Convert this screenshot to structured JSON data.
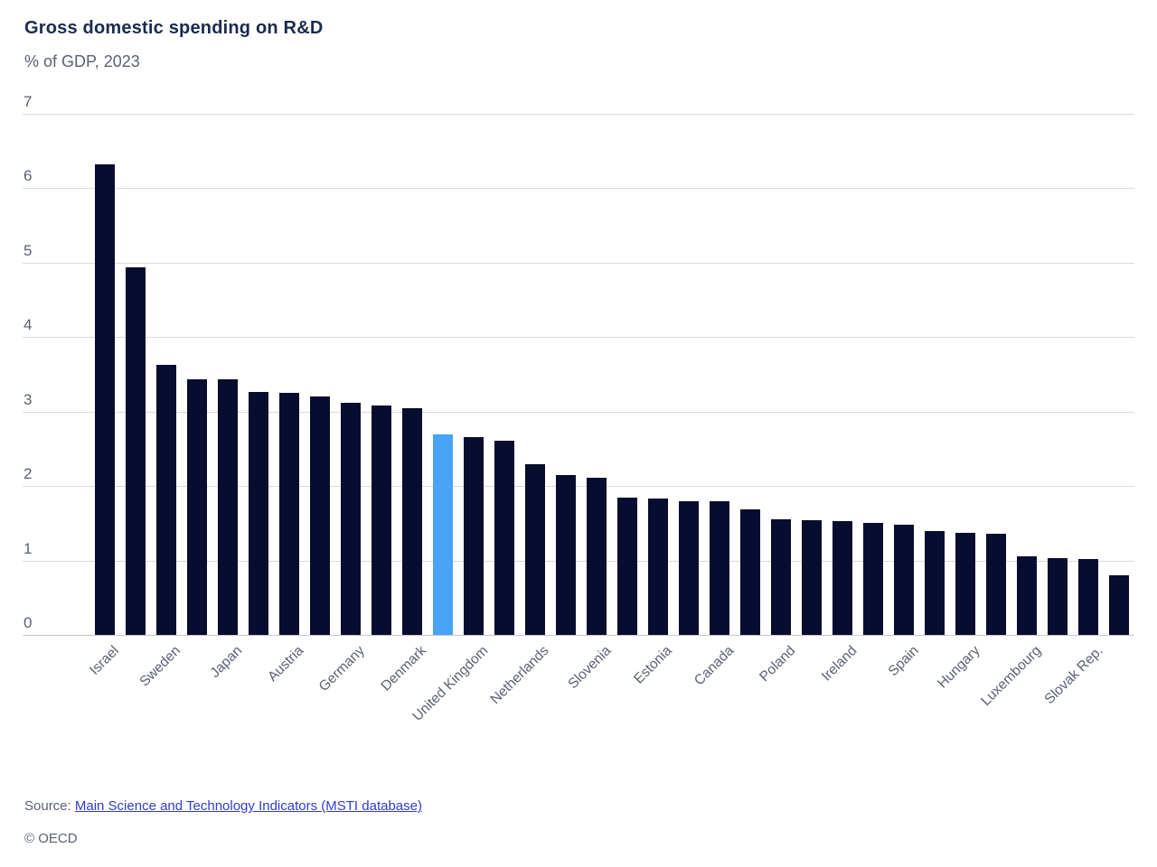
{
  "header": {
    "title": "Gross domestic spending on R&D",
    "subtitle": "% of GDP, 2023"
  },
  "footer": {
    "source_prefix": "Source:",
    "source_link": "Main Science and Technology Indicators (MSTI database)",
    "copyright": "© OECD"
  },
  "colors": {
    "bar": "#080d30",
    "highlight": "#49a3f7",
    "title_text": "#1a2a50",
    "muted_text": "#5a6173",
    "gridline": "#d9dade",
    "axis_line": "#c7c9d1",
    "link": "#2f3bd4"
  },
  "chart_data": {
    "type": "bar",
    "title": "Gross domestic spending on R&D",
    "subtitle": "% of GDP, 2023",
    "xlabel": "",
    "ylabel": "% of GDP",
    "ylim": [
      0,
      7
    ],
    "yticks": [
      0,
      1,
      2,
      3,
      4,
      5,
      6,
      7
    ],
    "grid": "horizontal",
    "legend": "none",
    "highlighted_index": 11,
    "note": "Only every other bar carries a country label in the rendered axis; unlabeled bars are empty strings. The bar at index 11 is highlighted light blue.",
    "categories": [
      "Israel",
      "",
      "Sweden",
      "",
      "Japan",
      "",
      "Austria",
      "",
      "Germany",
      "",
      "Denmark",
      "",
      "United Kingdom",
      "",
      "Netherlands",
      "",
      "Slovenia",
      "",
      "Estonia",
      "",
      "Canada",
      "",
      "Poland",
      "",
      "Ireland",
      "",
      "Spain",
      "",
      "Hungary",
      "",
      "Luxembourg",
      "",
      "Slovak Rep.",
      ""
    ],
    "values": [
      6.32,
      4.94,
      3.63,
      3.43,
      3.43,
      3.26,
      3.25,
      3.2,
      3.12,
      3.08,
      3.04,
      2.69,
      2.66,
      2.61,
      2.29,
      2.15,
      2.11,
      1.84,
      1.83,
      1.8,
      1.79,
      1.69,
      1.55,
      1.54,
      1.53,
      1.5,
      1.48,
      1.4,
      1.37,
      1.36,
      1.06,
      1.03,
      1.02,
      0.8
    ]
  }
}
